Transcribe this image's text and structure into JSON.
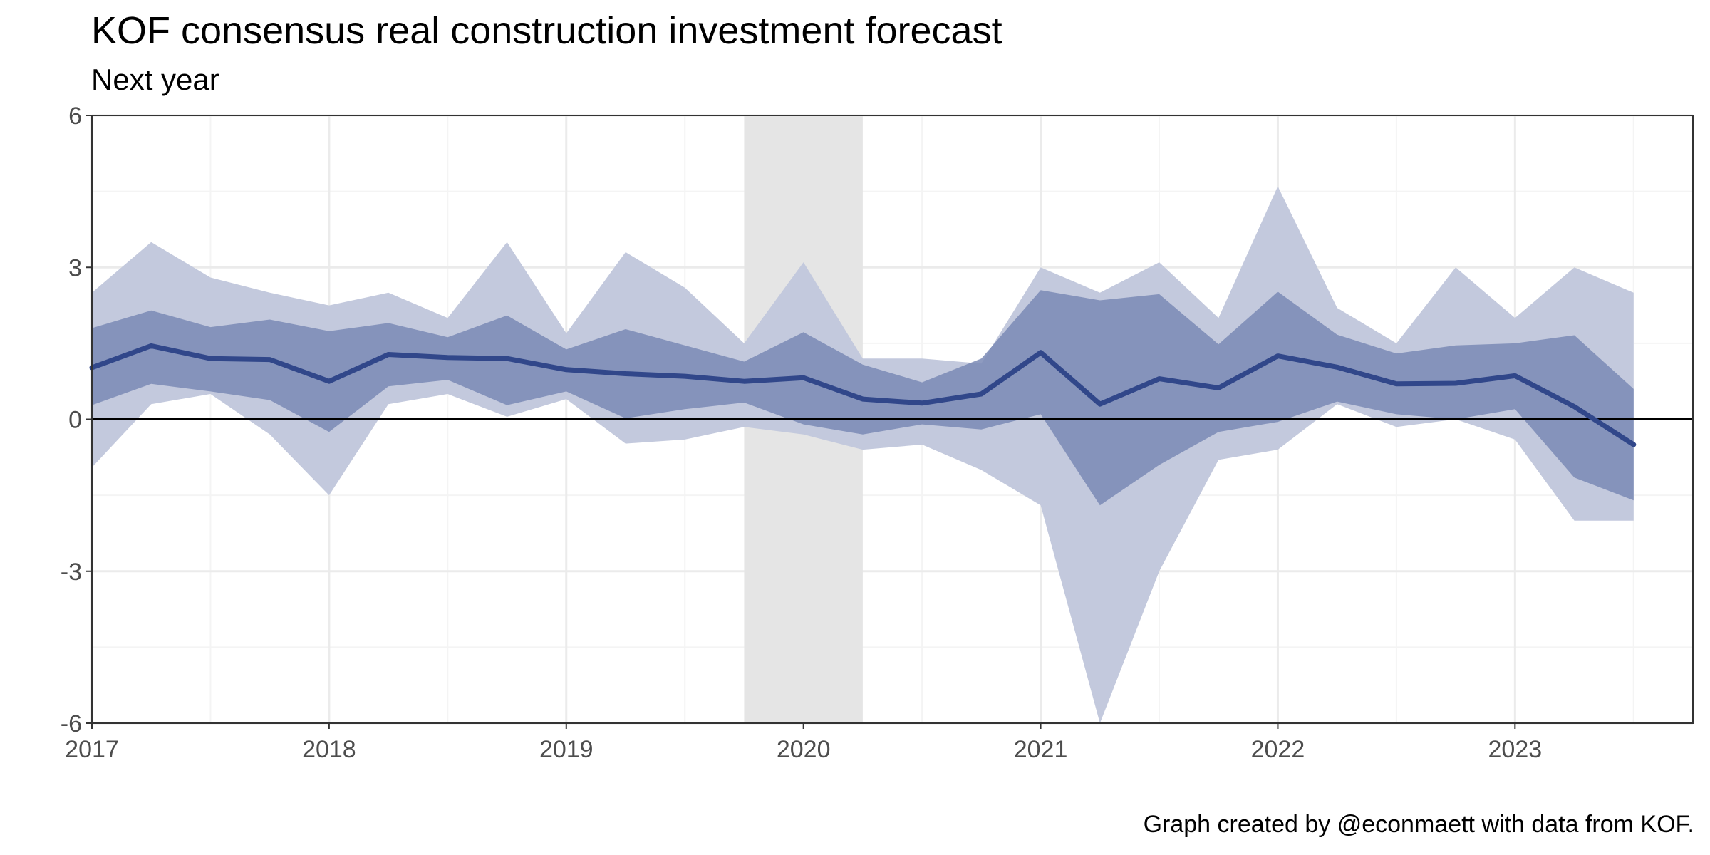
{
  "title": "KOF consensus real construction investment forecast",
  "subtitle": "Next year",
  "caption": "Graph created by @econmaett with data from KOF.",
  "chart_data": {
    "type": "area",
    "x_unit": "year",
    "xlim": [
      2017,
      2023.75
    ],
    "ylim": [
      -6,
      6
    ],
    "y_ticks": [
      6,
      3,
      0,
      -3,
      -6
    ],
    "y_tick_labels": [
      "6",
      "3",
      "0",
      "-3",
      "-6"
    ],
    "x_ticks": [
      2017,
      2018,
      2019,
      2020,
      2021,
      2022,
      2023
    ],
    "x_tick_labels": [
      "2017",
      "2018",
      "2019",
      "2020",
      "2021",
      "2022",
      "2023"
    ],
    "grid": true,
    "legend": "none",
    "zero_line": true,
    "shaded_period": {
      "start": 2019.75,
      "end": 2020.25
    },
    "x": [
      2017.0,
      2017.25,
      2017.5,
      2017.75,
      2018.0,
      2018.25,
      2018.5,
      2018.75,
      2019.0,
      2019.25,
      2019.5,
      2019.75,
      2020.0,
      2020.25,
      2020.5,
      2020.75,
      2021.0,
      2021.25,
      2021.5,
      2021.75,
      2022.0,
      2022.25,
      2022.5,
      2022.75,
      2023.0,
      2023.25,
      2023.5
    ],
    "series": [
      {
        "name": "",
        "role": "min-max range",
        "low": [
          -0.95,
          0.3,
          0.5,
          -0.3,
          -1.5,
          0.3,
          0.5,
          0.05,
          0.4,
          -0.48,
          -0.4,
          -0.15,
          -0.3,
          -0.6,
          -0.5,
          -1.0,
          -1.7,
          -6.0,
          -3.0,
          -0.8,
          -0.6,
          0.3,
          -0.15,
          0.0,
          -0.4,
          -2.0,
          -2.0
        ],
        "high": [
          2.5,
          3.5,
          2.8,
          2.5,
          2.25,
          2.5,
          2.0,
          3.5,
          1.7,
          3.3,
          2.6,
          1.5,
          3.1,
          1.2,
          1.2,
          1.1,
          3.0,
          2.5,
          3.1,
          2.0,
          4.6,
          2.2,
          1.5,
          3.0,
          2.0,
          3.0,
          2.5
        ]
      },
      {
        "name": "",
        "role": "inner range",
        "low": [
          0.28,
          0.7,
          0.55,
          0.38,
          -0.25,
          0.65,
          0.78,
          0.28,
          0.55,
          0.02,
          0.2,
          0.33,
          -0.1,
          -0.3,
          -0.1,
          -0.2,
          0.1,
          -1.7,
          -0.9,
          -0.25,
          -0.05,
          0.35,
          0.1,
          0.0,
          0.2,
          -1.15,
          -1.6
        ],
        "high": [
          1.8,
          2.15,
          1.82,
          1.97,
          1.74,
          1.9,
          1.62,
          2.05,
          1.38,
          1.78,
          1.46,
          1.14,
          1.72,
          1.08,
          0.73,
          1.2,
          2.55,
          2.35,
          2.47,
          1.48,
          2.52,
          1.67,
          1.3,
          1.46,
          1.5,
          1.66,
          0.6
        ]
      },
      {
        "name": "",
        "role": "consensus mean",
        "values": [
          1.02,
          1.45,
          1.2,
          1.18,
          0.75,
          1.28,
          1.22,
          1.2,
          0.98,
          0.9,
          0.85,
          0.75,
          0.82,
          0.4,
          0.32,
          0.5,
          1.32,
          0.3,
          0.8,
          0.62,
          1.25,
          1.03,
          0.7,
          0.71,
          0.86,
          0.25,
          -0.5
        ]
      }
    ],
    "colors": {
      "outer_band": "#c3c9dd",
      "inner_band": "#7a89b5",
      "mean_line": "#31478a",
      "shaded_period": "#e5e5e5",
      "zero_line": "#000000",
      "grid_major": "#ebebeb",
      "grid_minor": "#f4f4f4",
      "frame": "#333333",
      "tick_text": "#4d4d4d"
    }
  }
}
